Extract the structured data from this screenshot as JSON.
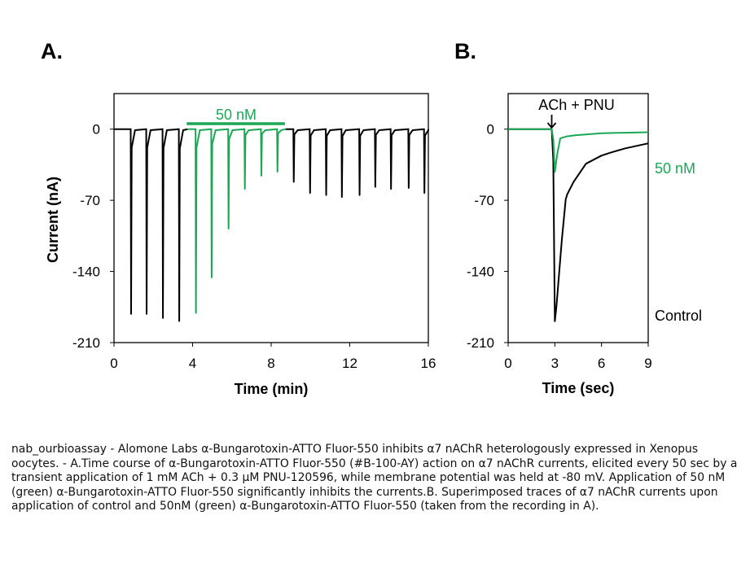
{
  "colors": {
    "control": "#000000",
    "toxin": "#1aa855"
  },
  "chart_data": [
    {
      "panel": "A.",
      "type": "line",
      "xlabel": "Time (min)",
      "ylabel": "Current (nA)",
      "xlim": [
        0,
        16
      ],
      "ylim": [
        -210,
        35
      ],
      "xticks": [
        "0",
        "4",
        "8",
        "12",
        "16"
      ],
      "yticks": [
        "0",
        "-70",
        "-140",
        "-210"
      ],
      "grid": false,
      "annotation": {
        "text": "50 nM",
        "start": 3.7,
        "end": 8.7
      },
      "series": [
        {
          "color": "control",
          "peaks": [
            [
              0.87,
              -182
            ],
            [
              1.66,
              -182
            ],
            [
              2.49,
              -186
            ],
            [
              3.32,
              -189
            ]
          ]
        },
        {
          "color": "toxin",
          "peaks": [
            [
              4.17,
              -181
            ],
            [
              4.97,
              -146
            ],
            [
              5.83,
              -98
            ],
            [
              6.66,
              -59
            ],
            [
              7.5,
              -46
            ],
            [
              8.32,
              -42
            ]
          ]
        },
        {
          "color": "control",
          "peaks": [
            [
              9.15,
              -52
            ],
            [
              9.98,
              -63
            ],
            [
              10.8,
              -65
            ],
            [
              11.6,
              -67
            ],
            [
              12.5,
              -65
            ],
            [
              13.3,
              -57
            ],
            [
              14.1,
              -59
            ],
            [
              15.0,
              -58
            ],
            [
              15.8,
              -63
            ]
          ]
        }
      ]
    },
    {
      "panel": "B.",
      "type": "line",
      "xlabel": "Time (sec)",
      "xlim": [
        0,
        9
      ],
      "ylim": [
        -210,
        35
      ],
      "xticks": [
        "0",
        "3",
        "6",
        "9"
      ],
      "yticks": [
        "0",
        "-70",
        "-140",
        "-210"
      ],
      "grid": false,
      "annotation": {
        "text": "ACh + PNU",
        "x": 2.8
      },
      "series": [
        {
          "name": "Control",
          "color": "control",
          "x": [
            0,
            2.8,
            2.9,
            3.0,
            3.1,
            3.45,
            3.7,
            3.8,
            4.2,
            5.0,
            6.0,
            6.6,
            7.5,
            9.0
          ],
          "y": [
            0,
            0,
            -30,
            -189,
            -175,
            -109,
            -69,
            -64,
            -52,
            -34,
            -26,
            -23,
            -19,
            -14
          ]
        },
        {
          "name": "50 nM",
          "color": "toxin",
          "x": [
            0,
            2.8,
            2.9,
            3.0,
            3.15,
            3.35,
            3.8,
            4.3,
            6.0,
            9.0
          ],
          "y": [
            0,
            0,
            -10,
            -42,
            -25,
            -9,
            -7,
            -6,
            -4,
            -3
          ]
        }
      ]
    }
  ],
  "caption": "nab_ourbioassay - Alomone Labs α-Bungarotoxin-ATTO Fluor-550 inhibits α7 nAChR heterologously expressed in Xenopus oocytes. - A.Time course of α-Bungarotoxin-ATTO Fluor-550 (#B-100-AY) action on α7 nAChR currents, elicited every 50 sec by a transient application of 1 mM ACh + 0.3 µM PNU-120596, while membrane potential was held at -80 mV. Application of 50 nM (green) α-Bungarotoxin-ATTO Fluor-550 significantly inhibits the currents.B. Superimposed traces of α7 nAChR currents upon application of control and 50nM (green) α-Bungarotoxin-ATTO Fluor-550 (taken from the recording in A)."
}
